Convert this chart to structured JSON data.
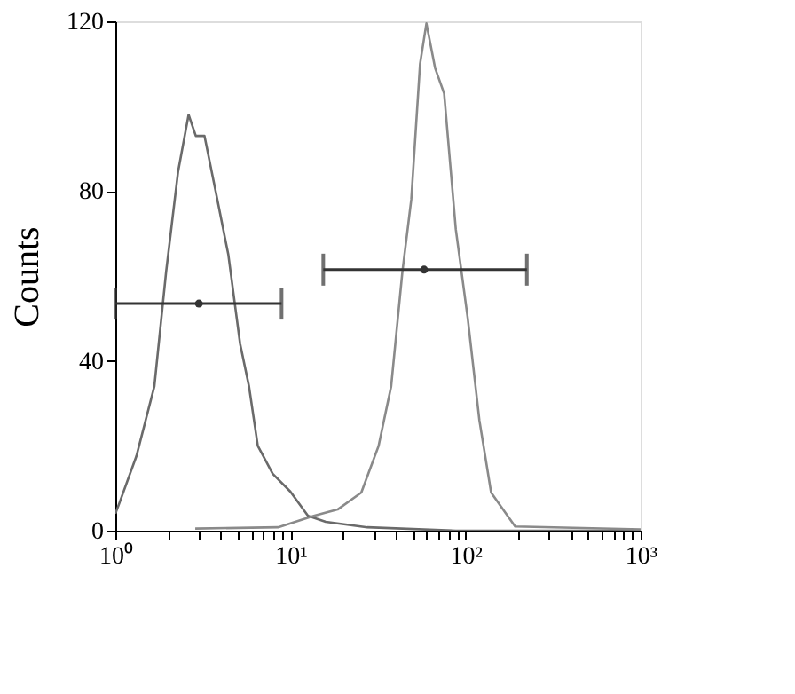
{
  "chart_data": {
    "type": "line",
    "ylabel": "Counts",
    "log": "x",
    "grid": false,
    "legend": false,
    "marker": "none",
    "line_style": "solid",
    "xlim": [
      1,
      1000
    ],
    "ylim": [
      0,
      120
    ],
    "xticks": [
      {
        "value": 1,
        "label": "10⁰"
      },
      {
        "value": 2,
        "label": null
      },
      {
        "value": 3,
        "label": null
      },
      {
        "value": 4,
        "label": null
      },
      {
        "value": 5,
        "label": null
      },
      {
        "value": 6,
        "label": null
      },
      {
        "value": 7,
        "label": null
      },
      {
        "value": 8,
        "label": null
      },
      {
        "value": 9,
        "label": null
      },
      {
        "value": 10,
        "label": "10¹"
      },
      {
        "value": 20,
        "label": null
      },
      {
        "value": 30,
        "label": null
      },
      {
        "value": 40,
        "label": null
      },
      {
        "value": 50,
        "label": null
      },
      {
        "value": 60,
        "label": null
      },
      {
        "value": 70,
        "label": null
      },
      {
        "value": 80,
        "label": null
      },
      {
        "value": 90,
        "label": null
      },
      {
        "value": 100,
        "label": "10²"
      },
      {
        "value": 200,
        "label": null
      },
      {
        "value": 300,
        "label": null
      },
      {
        "value": 400,
        "label": null
      },
      {
        "value": 500,
        "label": null
      },
      {
        "value": 600,
        "label": null
      },
      {
        "value": 700,
        "label": null
      },
      {
        "value": 800,
        "label": null
      },
      {
        "value": 900,
        "label": null
      },
      {
        "value": 1000,
        "label": "10³"
      }
    ],
    "yticks": [
      0,
      40,
      80,
      120
    ],
    "series": [
      {
        "color": "#6a6a6a",
        "x": [
          1,
          1.05,
          1.32,
          1.67,
          1.95,
          2.28,
          2.62,
          2.88,
          3.23,
          3.78,
          4.42,
          5.16,
          5.8,
          6.51,
          7.92,
          10,
          12.6,
          15.9,
          27.5,
          88,
          1000
        ],
        "values": [
          4,
          6.3,
          17.6,
          34,
          61,
          84.5,
          98,
          93,
          93,
          79,
          65,
          44,
          34,
          20,
          13.4,
          9.2,
          3.5,
          2.1,
          0.8,
          0,
          0
        ]
      },
      {
        "color": "#8a8a8a",
        "x": [
          2.86,
          8.5,
          13.6,
          18.6,
          25.4,
          31.9,
          37.6,
          43.6,
          49,
          55,
          59.8,
          67,
          75.5,
          88,
          103,
          120,
          140,
          192,
          1000
        ],
        "values": [
          0.5,
          0.8,
          3.5,
          5,
          9,
          20,
          34,
          61,
          78,
          110,
          119.5,
          109,
          103,
          71,
          50,
          26,
          9,
          1,
          0.3
        ]
      },
      {
        "type": "scatter",
        "marker": "circle",
        "color": "#333333",
        "x": [
          3
        ],
        "values": [
          53.5
        ],
        "xerrors": [
          [
            1,
            8.9
          ]
        ]
      },
      {
        "type": "scatter",
        "marker": "circle",
        "color": "#333333",
        "x": [
          58
        ],
        "values": [
          61.5
        ],
        "xerrors": [
          [
            15.4,
            224
          ]
        ]
      }
    ]
  }
}
